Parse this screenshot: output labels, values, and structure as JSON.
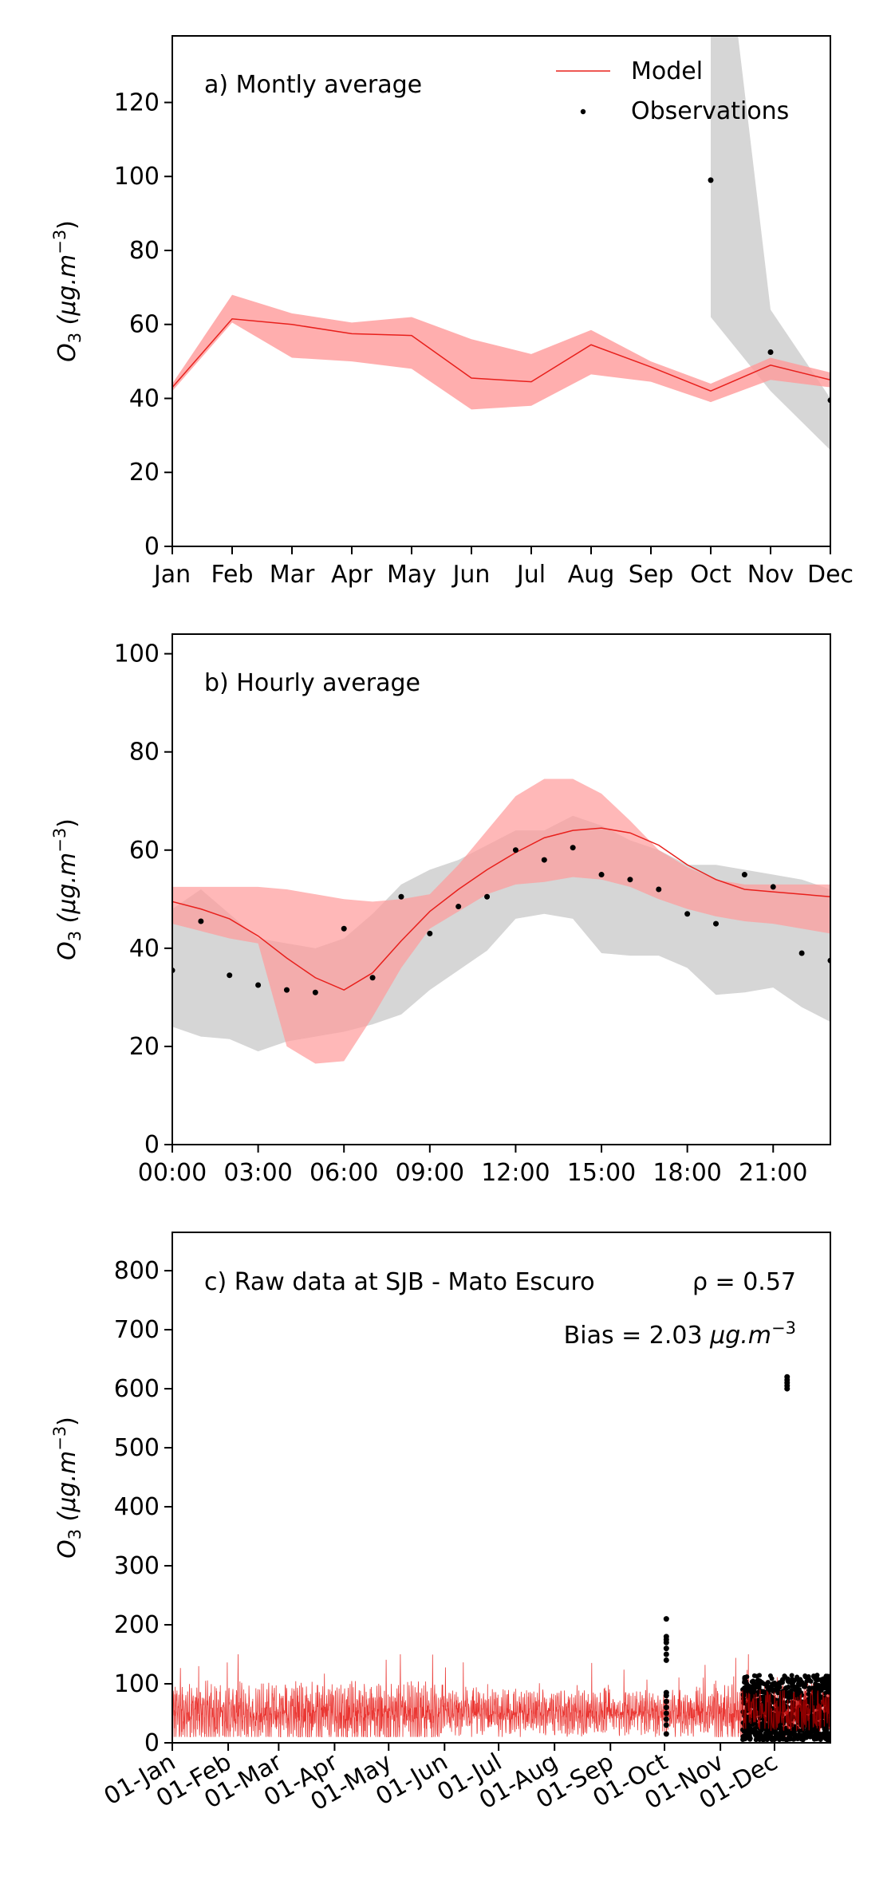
{
  "colors": {
    "model": "#e8201c",
    "model_band": "#ff9a9a",
    "obs": "#000000",
    "obs_band": "#c8c8c8"
  },
  "chart_data": [
    {
      "type": "line",
      "title": "a) Montly average",
      "ylabel_base": "O",
      "ylabel_sub": "3",
      "ylabel_unit": "(μg.m",
      "ylabel_exp": "−3",
      "ylabel_close": ")",
      "legend_placement": "top-right",
      "legend": {
        "model": "Model",
        "obs": "Observations"
      },
      "grid": false,
      "categories": [
        "Jan",
        "Feb",
        "Mar",
        "Apr",
        "May",
        "Jun",
        "Jul",
        "Aug",
        "Sep",
        "Oct",
        "Nov",
        "Dec"
      ],
      "ylim": [
        0,
        138
      ],
      "yticks": [
        0,
        20,
        40,
        60,
        80,
        100,
        120
      ],
      "series": [
        {
          "name": "Model",
          "values": [
            43,
            61.5,
            60,
            57.5,
            57,
            45.5,
            44.5,
            54.5,
            48.5,
            42,
            49,
            45
          ]
        },
        {
          "name": "Observations",
          "values": [
            null,
            null,
            null,
            null,
            null,
            null,
            null,
            null,
            null,
            99,
            52.5,
            39.5
          ]
        }
      ],
      "model_band": {
        "upper": [
          44,
          68,
          63,
          60.5,
          62,
          56,
          52,
          58.5,
          50,
          44,
          51,
          47
        ],
        "lower": [
          42,
          60.5,
          51,
          50,
          48,
          37,
          38,
          46.5,
          44.5,
          39,
          45,
          43
        ]
      },
      "obs_band": {
        "x_start_index": 9,
        "upper": [
          200,
          64,
          40
        ],
        "lower": [
          62,
          42,
          26
        ]
      }
    },
    {
      "type": "line",
      "title": "b) Hourly average",
      "ylabel_base": "O",
      "ylabel_sub": "3",
      "ylabel_unit": "(μg.m",
      "ylabel_exp": "−3",
      "ylabel_close": ")",
      "grid": false,
      "x": [
        0,
        1,
        2,
        3,
        4,
        5,
        6,
        7,
        8,
        9,
        10,
        11,
        12,
        13,
        14,
        15,
        16,
        17,
        18,
        19,
        20,
        21,
        22,
        23
      ],
      "xticks": [
        0,
        3,
        6,
        9,
        12,
        15,
        18,
        21
      ],
      "xtick_labels": [
        "00:00",
        "03:00",
        "06:00",
        "09:00",
        "12:00",
        "15:00",
        "18:00",
        "21:00"
      ],
      "xlim": [
        0,
        23
      ],
      "ylim": [
        0,
        104
      ],
      "yticks": [
        0,
        20,
        40,
        60,
        80,
        100
      ],
      "series": [
        {
          "name": "Model",
          "values": [
            49.5,
            48,
            46,
            42.5,
            38,
            34,
            31.5,
            35,
            41.5,
            47.5,
            52,
            56,
            59.5,
            62.5,
            64,
            64.5,
            63.5,
            61,
            57,
            54,
            52,
            51.5,
            51,
            50.5
          ]
        },
        {
          "name": "Observations",
          "values": [
            35.5,
            45.5,
            34.5,
            32.5,
            31.5,
            31,
            44,
            34,
            50.5,
            43,
            48.5,
            50.5,
            60,
            58,
            60.5,
            55,
            54,
            52,
            47,
            45,
            55,
            52.5,
            39,
            37.5
          ]
        }
      ],
      "model_band": {
        "upper": [
          52.5,
          52.5,
          52.5,
          52.5,
          52,
          51,
          50,
          49.5,
          50,
          51,
          57,
          64,
          71,
          74.5,
          74.5,
          71.5,
          66,
          60,
          56.5,
          54,
          53,
          53,
          53,
          53
        ],
        "lower": [
          45,
          43.5,
          42,
          41,
          20,
          16.5,
          17,
          26,
          36,
          44,
          47.5,
          51,
          53,
          53.5,
          54.5,
          54,
          52.5,
          50,
          48,
          46.5,
          45.5,
          45,
          44,
          43
        ]
      },
      "obs_band": {
        "upper": [
          48,
          52,
          47,
          42,
          41,
          40,
          42,
          47,
          53,
          56,
          58,
          61,
          64,
          64,
          67,
          65,
          62,
          60,
          57,
          57,
          56,
          55,
          54,
          52
        ],
        "lower": [
          24,
          22,
          21.5,
          19,
          21,
          22,
          23,
          24.5,
          26.5,
          31.5,
          35.5,
          39.5,
          46,
          47,
          46,
          39,
          38.5,
          38.5,
          36,
          30.5,
          31,
          32,
          28,
          25
        ]
      }
    },
    {
      "type": "line",
      "title": "c) Raw data at SJB - Mato Escuro",
      "annotation_rho": "ρ = 0.57",
      "annotation_bias_prefix": "Bias = 2.03 ",
      "annotation_bias_unit": "μg.m",
      "annotation_bias_exp": "−3",
      "ylabel_base": "O",
      "ylabel_sub": "3",
      "ylabel_unit": "(μg.m",
      "ylabel_exp": "−3",
      "ylabel_close": ")",
      "grid": false,
      "xlim_days": [
        0,
        365
      ],
      "xticks": [
        "01-Jan",
        "01-Feb",
        "01-Mar",
        "01-Apr",
        "01-May",
        "01-Jun",
        "01-Jul",
        "01-Aug",
        "01-Sep",
        "01-Oct",
        "01-Nov",
        "01-Dec"
      ],
      "xtick_days": [
        0,
        31,
        59,
        90,
        120,
        151,
        181,
        212,
        243,
        273,
        304,
        334
      ],
      "ylim": [
        0,
        865
      ],
      "yticks": [
        0,
        100,
        200,
        300,
        400,
        500,
        600,
        700,
        800
      ],
      "model_range": {
        "typical_min": 10,
        "typical_max": 150,
        "mean": 50
      },
      "observations": {
        "oct_burst": {
          "day": 274,
          "values": [
            15,
            30,
            40,
            50,
            60,
            70,
            80,
            85,
            140,
            150,
            160,
            170,
            175,
            180,
            210
          ]
        },
        "nov_dec_cluster": {
          "day_range": [
            316,
            365
          ],
          "value_range": [
            5,
            115
          ]
        },
        "dec_spike": {
          "day": 341,
          "values": [
            600,
            605,
            610,
            615,
            620
          ]
        }
      }
    }
  ]
}
